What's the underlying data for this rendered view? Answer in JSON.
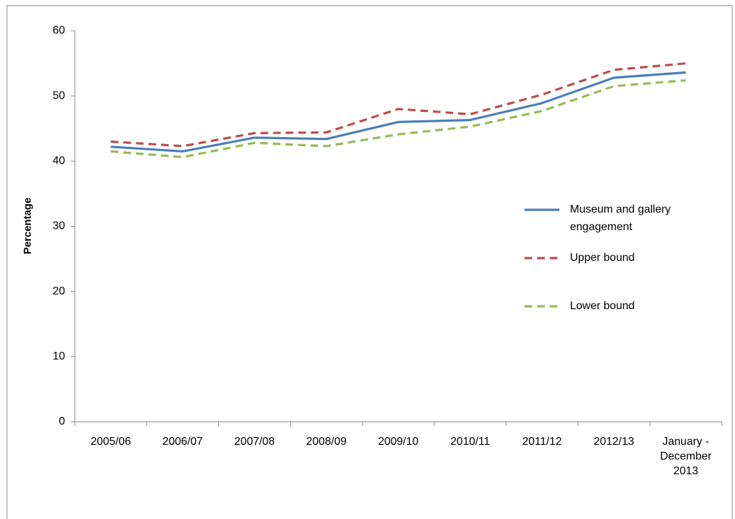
{
  "chart_data": {
    "type": "line",
    "y_label": "Percentage",
    "categories": [
      "2005/06",
      "2006/07",
      "2007/08",
      "2008/09",
      "2009/10",
      "2010/11",
      "2011/12",
      "2012/13",
      "January - December 2013"
    ],
    "series": [
      {
        "name": "Museum and gallery engagement",
        "color": "#4a7ebb",
        "dash": "solid",
        "values": [
          42.2,
          41.5,
          43.6,
          43.4,
          46.0,
          46.3,
          48.9,
          52.8,
          53.6
        ]
      },
      {
        "name": "Upper bound",
        "color": "#be4b48",
        "dash": "dashed",
        "values": [
          43.0,
          42.3,
          44.3,
          44.4,
          48.0,
          47.2,
          50.2,
          54.0,
          55.0
        ]
      },
      {
        "name": "Lower bound",
        "color": "#98b954",
        "dash": "dashed",
        "values": [
          41.5,
          40.6,
          42.8,
          42.3,
          44.1,
          45.3,
          47.7,
          51.5,
          52.4
        ]
      }
    ],
    "ylim": [
      0,
      60
    ],
    "yticks": [
      0,
      10,
      20,
      30,
      40,
      50,
      60
    ],
    "grid": false,
    "legend": "right"
  }
}
